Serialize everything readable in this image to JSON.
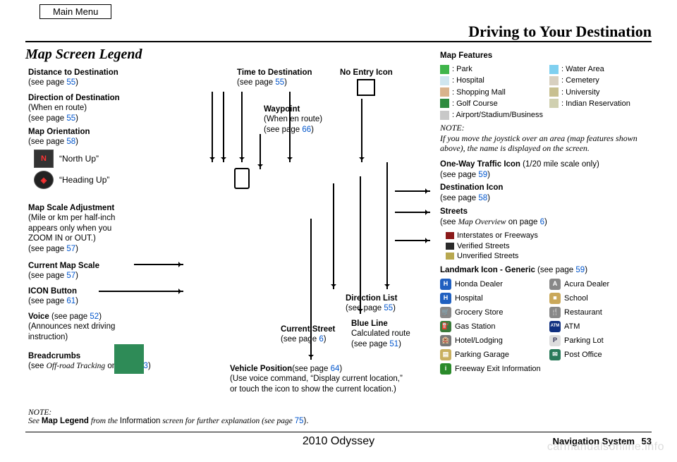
{
  "header": {
    "main_menu": "Main Menu",
    "page_title": "Driving to Your Destination",
    "section_title": "Map Screen Legend"
  },
  "footer": {
    "model": "2010 Odyssey",
    "system": "Navigation System",
    "page_num": "53",
    "watermark": "carmanualsonline.info"
  },
  "left": {
    "dist_title": "Distance to Destination",
    "dist_sub": "(see page ",
    "dist_pg": "55",
    "dir_title": "Direction of Destination",
    "dir_sub1": "(When en route)",
    "dir_sub2": "(see page ",
    "dir_pg": "55",
    "orient_title": "Map Orientation",
    "orient_sub": "(see page ",
    "orient_pg": "58",
    "north_up": "“North Up”",
    "heading_up": "“Heading Up”",
    "scale_adj_title": "Map Scale Adjustment",
    "scale_adj_sub1": "(Mile or km per half-inch",
    "scale_adj_sub2": "appears only when you",
    "scale_adj_sub3": "ZOOM IN or OUT.)",
    "scale_adj_sub4": "(see page ",
    "scale_adj_pg": "57",
    "cur_scale_title": "Current Map Scale",
    "cur_scale_sub": "(see page ",
    "cur_scale_pg": "57",
    "icon_btn_title": "ICON Button",
    "icon_btn_sub": "(see page ",
    "icon_btn_pg": "61",
    "voice_title": "Voice ",
    "voice_sub": "(see page ",
    "voice_pg": "52",
    "voice_sub2": "(Announces next driving",
    "voice_sub3": "instruction)",
    "bread_title": "Breadcrumbs",
    "bread_sub1": "(see ",
    "bread_em": "Off-road Tracking",
    "bread_sub2": " on page ",
    "bread_pg": "63"
  },
  "center": {
    "time_title": "Time to Destination",
    "time_sub": "(see page ",
    "time_pg": "55",
    "noentry_title": "No Entry Icon",
    "waypoint_title": "Waypoint",
    "waypoint_sub1": "(When en route)",
    "waypoint_sub2": "(see page ",
    "waypoint_pg": "66",
    "dirlist_title": "Direction List",
    "dirlist_sub": "(see page ",
    "dirlist_pg": "55",
    "curstreet_title": "Current Street",
    "curstreet_sub": "(see page ",
    "curstreet_pg": "6",
    "blueline_title": "Blue Line",
    "blueline_sub1": "Calculated route",
    "blueline_sub2": "(see page ",
    "blueline_pg": "51",
    "vehpos_title": "Vehicle Position",
    "vehpos_sub1": "(see page ",
    "vehpos_pg": "64",
    "vehpos_sub2": "(Use voice command, “Display current location,”",
    "vehpos_sub3": "or touch the icon to show the current location.)"
  },
  "right": {
    "mf_title": "Map Features",
    "features": [
      {
        "label": ": Park",
        "color": "#3fb54a"
      },
      {
        "label": ": Water Area",
        "color": "#7fd0f0"
      },
      {
        "label": ": Hospital",
        "color": "#cfe6ef"
      },
      {
        "label": ": Cemetery",
        "color": "#d8d0c0"
      },
      {
        "label": ": Shopping Mall",
        "color": "#d9b38c"
      },
      {
        "label": ": University",
        "color": "#c8c090"
      },
      {
        "label": ": Golf Course",
        "color": "#2e8b3f"
      },
      {
        "label": ": Indian Reservation",
        "color": "#d0d0b0"
      },
      {
        "label": ": Airport/Stadium/Business",
        "color": "#c8c8c8"
      }
    ],
    "note_label": "NOTE:",
    "note_text": "If you move the joystick over an area (map features shown above), the name is displayed on the screen.",
    "oneway_title": "One-Way Traffic Icon ",
    "oneway_paren": "(1/20 mile scale only)",
    "oneway_sub": "(see page ",
    "oneway_pg": "59",
    "dest_title": "Destination Icon",
    "dest_sub": "(see page ",
    "dest_pg": "58",
    "streets_title": "Streets",
    "streets_sub1": "(see ",
    "streets_em": "Map Overview",
    "streets_sub2": " on page ",
    "streets_pg": "6",
    "street_types": [
      {
        "label": "Interstates or Freeways",
        "color": "#8b1a1a"
      },
      {
        "label": "Verified Streets",
        "color": "#2a2a2a"
      },
      {
        "label": "Unverified Streets",
        "color": "#b8a850"
      }
    ],
    "landmark_title": "Landmark Icon - Generic ",
    "landmark_sub": "(see page ",
    "landmark_pg": "59",
    "landmarks": [
      {
        "label": "Honda Dealer",
        "bg": "#2060c0",
        "txt": "H"
      },
      {
        "label": "Acura Dealer",
        "bg": "#888",
        "txt": "A"
      },
      {
        "label": "Hospital",
        "bg": "#2060c0",
        "txt": "H"
      },
      {
        "label": "School",
        "bg": "#caa85a",
        "txt": "■"
      },
      {
        "label": "Grocery Store",
        "bg": "#888",
        "txt": "🛒"
      },
      {
        "label": "Restaurant",
        "bg": "#888",
        "txt": "🍴"
      },
      {
        "label": "Gas Station",
        "bg": "#3a7a3a",
        "txt": "⛽"
      },
      {
        "label": "ATM",
        "bg": "#103080",
        "txt": "ATM"
      },
      {
        "label": "Hotel/Lodging",
        "bg": "#777",
        "txt": "🏨"
      },
      {
        "label": "Parking Lot",
        "bg": "#ddd",
        "txt": "P"
      },
      {
        "label": "Parking Garage",
        "bg": "#c9b060",
        "txt": "▤"
      },
      {
        "label": "Post Office",
        "bg": "#2a7a5a",
        "txt": "✉"
      },
      {
        "label": "Freeway Exit Information",
        "bg": "#2a8a2a",
        "txt": "i",
        "full": true
      }
    ]
  },
  "bottom_note": {
    "label": "NOTE:",
    "pre": "See ",
    "bold": "Map Legend",
    "mid": " from the ",
    "nrm": "Information",
    "post": " screen for further explanation (see page ",
    "pg": "75",
    "end": ")."
  }
}
